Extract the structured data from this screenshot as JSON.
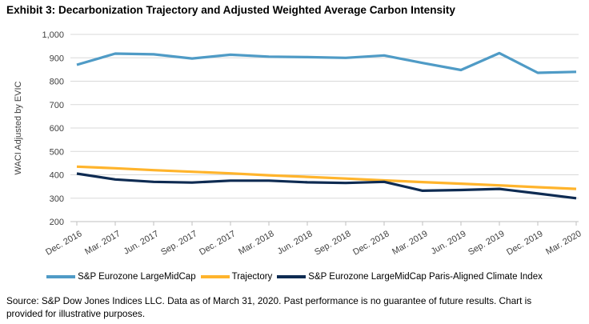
{
  "title": "Exhibit 3: Decarbonization Trajectory and Adjusted Weighted Average Carbon Intensity",
  "chart_data": {
    "type": "line",
    "categories": [
      "Dec. 2016",
      "Mar. 2017",
      "Jun. 2017",
      "Sep. 2017",
      "Dec. 2017",
      "Mar. 2018",
      "Jun. 2018",
      "Sep. 2018",
      "Dec. 2018",
      "Mar. 2019",
      "Jun. 2019",
      "Sep. 2019",
      "Dec. 2019",
      "Mar. 2020"
    ],
    "series": [
      {
        "name": "S&P Eurozone LargeMidCap",
        "color": "#4F9BC6",
        "values": [
          870,
          918,
          915,
          897,
          913,
          905,
          903,
          900,
          910,
          878,
          848,
          920,
          836,
          840
        ]
      },
      {
        "name": "Trajectory",
        "color": "#FFB42C",
        "values": [
          435,
          428,
          420,
          413,
          406,
          398,
          391,
          384,
          376,
          369,
          362,
          355,
          347,
          340
        ]
      },
      {
        "name": "S&P Eurozone LargeMidCap Paris-Aligned Climate Index",
        "color": "#0E2B52",
        "values": [
          405,
          380,
          370,
          367,
          375,
          375,
          368,
          365,
          370,
          332,
          335,
          340,
          320,
          300
        ]
      }
    ],
    "ylabel": "WACI Adjusted by EVIC",
    "xlabel": "",
    "ylim": [
      200,
      1000
    ],
    "ytick_step": 100,
    "grid": true,
    "legend_position": "bottom",
    "colors": {
      "gridline": "#D9D9D9",
      "axis_line": "#BFBFBF",
      "tick_label": "#404040"
    }
  },
  "source": {
    "line1": "Source: S&P Dow Jones Indices LLC. Data as of March 31, 2020. Past performance is no guarantee of future results. Chart is",
    "line2": "provided for illustrative purposes."
  }
}
